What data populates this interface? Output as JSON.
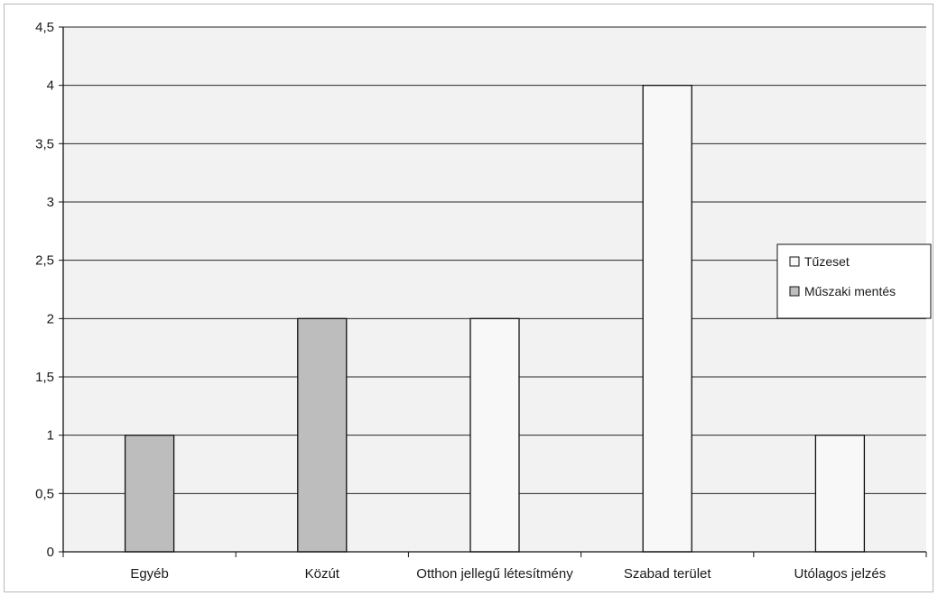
{
  "chart_data": {
    "type": "bar",
    "categories": [
      "Egyéb",
      "Közút",
      "Otthon jellegű létesítmény",
      "Szabad terület",
      "Utólagos jelzés"
    ],
    "series": [
      {
        "name": "Tűzeset",
        "values": [
          0,
          0,
          2,
          4,
          1
        ],
        "color": "#f8f8f8"
      },
      {
        "name": "Műszaki mentés",
        "values": [
          1,
          2,
          0,
          0,
          0
        ],
        "color": "#bdbdbd"
      }
    ],
    "y_ticks": [
      "0",
      "0,5",
      "1",
      "1,5",
      "2",
      "2,5",
      "3",
      "3,5",
      "4",
      "4,5"
    ],
    "ylim": [
      0,
      4.5
    ],
    "y_step": 0.5,
    "title": "",
    "xlabel": "",
    "ylabel": "",
    "grid": true,
    "legend_position": "right",
    "plot_background": "#f2f2f2",
    "gridline_color": "#262626"
  }
}
